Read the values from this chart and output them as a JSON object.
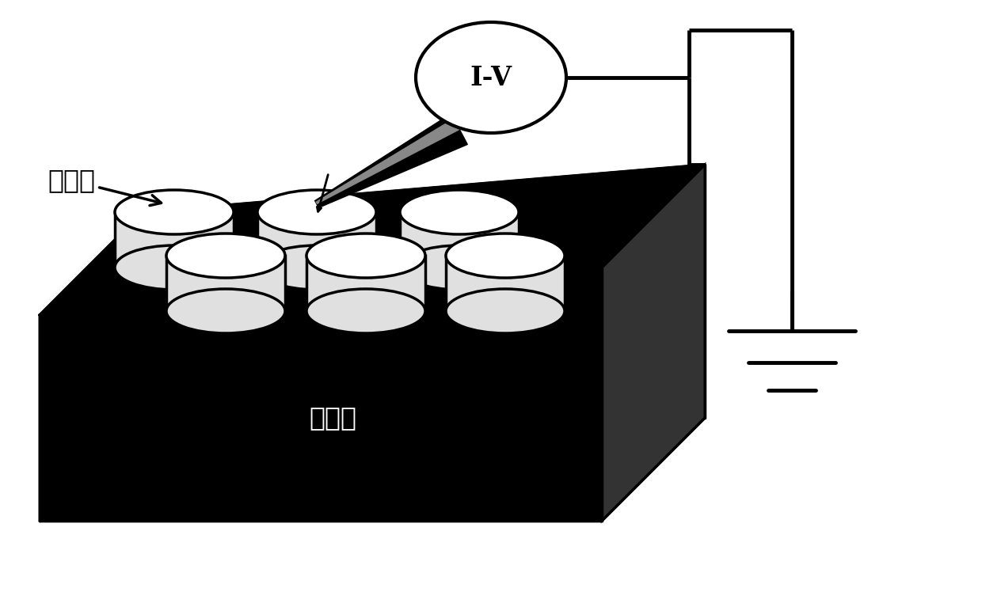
{
  "background_color": "#ffffff",
  "iv_label": "I-V",
  "iv_label_fontsize": 24,
  "upper_electrode_label": "上电极",
  "lower_electrode_label": "下电极",
  "label_fontsize": 24,
  "black": "#000000",
  "white": "#ffffff",
  "lgray": "#e0e0e0",
  "dgray": "#333333",
  "mgray": "#888888"
}
